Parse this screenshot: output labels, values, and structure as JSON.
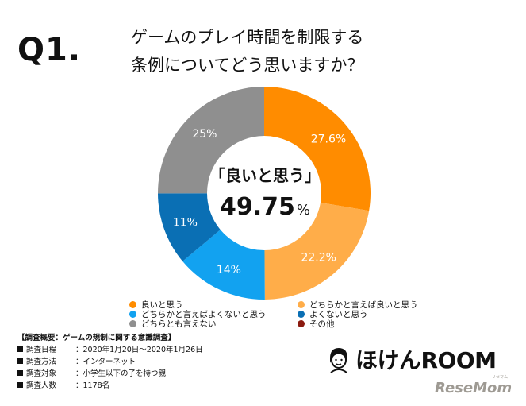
{
  "q_label": "Q1.",
  "title_lines": [
    "ゲームのプレイ時間を制限する",
    "条例についてどう思いますか？"
  ],
  "center": {
    "label": "「良いと思う」",
    "value": "49.75",
    "unit": "%"
  },
  "chart_data": {
    "type": "pie",
    "donut": true,
    "categories": [
      "良いと思う",
      "どちらかと言えば良いと思う",
      "どちらかと言えばよくないと思う",
      "よくないと思う",
      "どちらとも言えない",
      "その他"
    ],
    "values": [
      27.6,
      22.2,
      14,
      11,
      25,
      0
    ],
    "slice_labels": [
      "27.6%",
      "22.2%",
      "14%",
      "11%",
      "25%",
      ""
    ],
    "colors": [
      "#ff8c00",
      "#ffad49",
      "#12a2f0",
      "#0a6fb4",
      "#8f8f8f",
      "#8b1a0f"
    ],
    "legend": [
      {
        "label": "良いと思う",
        "color": "#ff8c00"
      },
      {
        "label": "どちらかと言えば良いと思う",
        "color": "#ffad49"
      },
      {
        "label": "どちらかと言えばよくないと思う",
        "color": "#12a2f0"
      },
      {
        "label": "よくないと思う",
        "color": "#0a6fb4"
      },
      {
        "label": "どちらとも言えない",
        "color": "#8f8f8f"
      },
      {
        "label": "その他",
        "color": "#8b1a0f"
      }
    ],
    "legend_placement": "bottom"
  },
  "survey": {
    "heading": "【調査概要：ゲームの規制に関する意識調査】",
    "rows": [
      {
        "key": "調査日程",
        "value": "：2020年1月20日〜2020年1月26日"
      },
      {
        "key": "調査方法",
        "value": "：インターネット"
      },
      {
        "key": "調査対象",
        "value": "：小学生以下の子を持つ親"
      },
      {
        "key": "調査人数",
        "value": "：1178名"
      }
    ]
  },
  "brand": {
    "name": "ほけんROOM",
    "source": "ReseMom",
    "source_sub": "リセマム"
  }
}
